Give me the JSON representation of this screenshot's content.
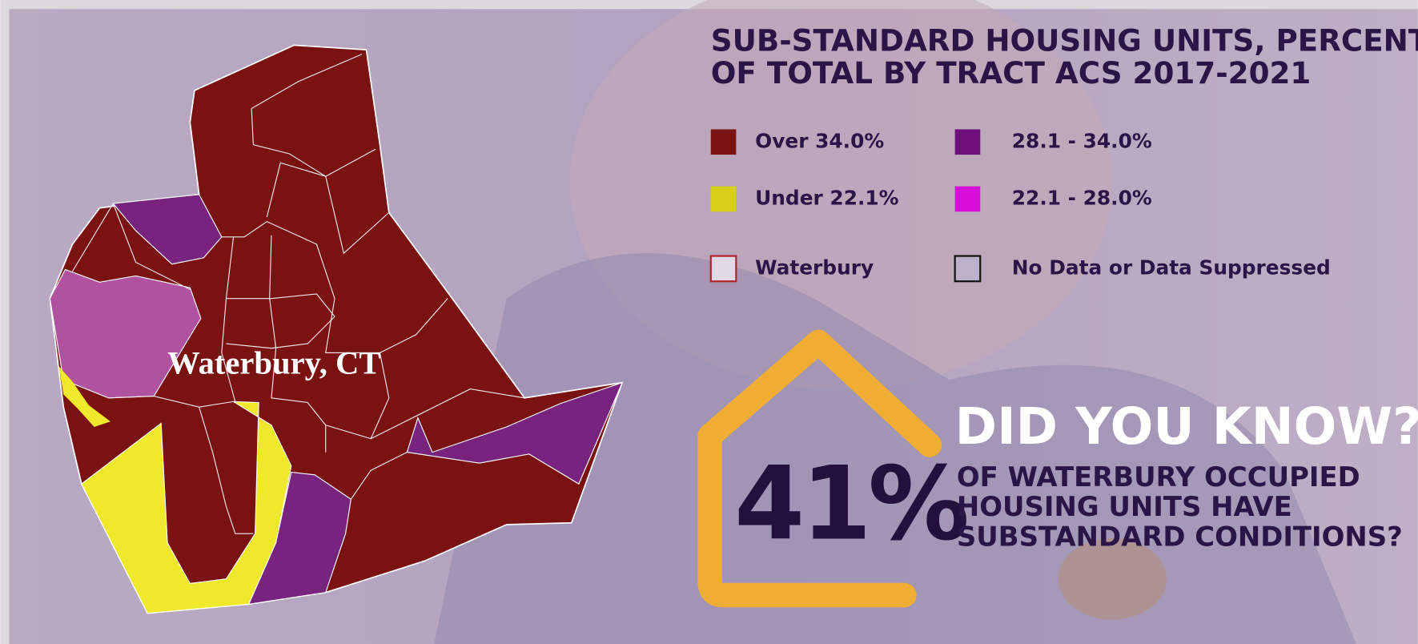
{
  "title_lines": [
    "SUB-STANDARD HOUSING UNITS, PERCENT",
    "OF TOTAL BY TRACT ACS 2017-2021"
  ],
  "legend": [
    {
      "label": "Over 34.0%",
      "color": "#7a1212"
    },
    {
      "label": "28.1 - 34.0%",
      "color": "#6e0f7a"
    },
    {
      "label": "Under 22.1%",
      "color": "#d8d018"
    },
    {
      "label": "22.1 - 28.0%",
      "color": "#d80fd8"
    },
    {
      "label": "Waterbury",
      "color": "#e2d9e6",
      "border": "#b3262e"
    },
    {
      "label": "No Data or Data Suppressed",
      "color": "#bcb1c8",
      "border": "#141414"
    }
  ],
  "map_label": "Waterbury, CT",
  "callout": {
    "heading": "DID YOU KNOW?",
    "stat": "41%",
    "lines": [
      "OF WATERBURY OCCUPIED",
      "HOUSING UNITS HAVE",
      "SUBSTANDARD CONDITIONS?"
    ]
  }
}
